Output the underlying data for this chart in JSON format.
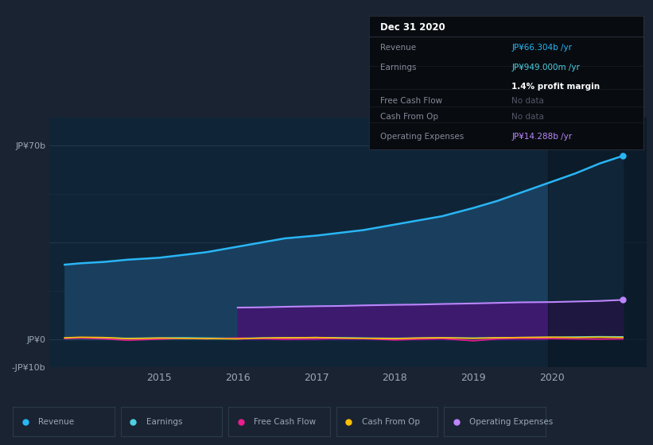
{
  "bg_color": "#1a2332",
  "plot_bg_color": "#0f2537",
  "grid_color": "#263d52",
  "text_color": "#9ba8b5",
  "years": [
    2013.8,
    2014.0,
    2014.3,
    2014.6,
    2015.0,
    2015.3,
    2015.6,
    2016.0,
    2016.3,
    2016.6,
    2017.0,
    2017.3,
    2017.6,
    2018.0,
    2018.3,
    2018.6,
    2019.0,
    2019.3,
    2019.6,
    2020.0,
    2020.3,
    2020.6,
    2020.9
  ],
  "revenue": [
    27.0,
    27.5,
    28.0,
    28.8,
    29.5,
    30.5,
    31.5,
    33.5,
    35.0,
    36.5,
    37.5,
    38.5,
    39.5,
    41.5,
    43.0,
    44.5,
    47.5,
    50.0,
    53.0,
    57.0,
    60.0,
    63.5,
    66.3
  ],
  "earnings": [
    0.5,
    0.6,
    0.55,
    0.4,
    0.5,
    0.6,
    0.5,
    0.4,
    0.5,
    0.6,
    0.7,
    0.6,
    0.5,
    0.4,
    0.5,
    0.6,
    0.5,
    0.6,
    0.7,
    0.8,
    0.9,
    1.0,
    0.949
  ],
  "free_cash_flow": [
    0.3,
    0.5,
    0.2,
    -0.3,
    0.1,
    0.4,
    0.2,
    0.5,
    0.3,
    0.1,
    0.2,
    0.4,
    0.3,
    -0.2,
    0.1,
    0.3,
    -0.5,
    0.2,
    0.4,
    0.3,
    0.2,
    0.1,
    0.2
  ],
  "cash_from_op": [
    0.6,
    0.8,
    0.7,
    0.3,
    0.5,
    0.4,
    0.3,
    0.2,
    0.5,
    0.6,
    0.7,
    0.5,
    0.4,
    0.3,
    0.5,
    0.6,
    0.4,
    0.6,
    0.7,
    0.8,
    0.7,
    0.8,
    0.7
  ],
  "op_expenses_years": [
    2016.0,
    2016.3,
    2016.6,
    2017.0,
    2017.3,
    2017.6,
    2018.0,
    2018.3,
    2018.6,
    2019.0,
    2019.3,
    2019.6,
    2020.0,
    2020.3,
    2020.6,
    2020.9
  ],
  "op_expenses": [
    11.5,
    11.6,
    11.8,
    12.0,
    12.1,
    12.3,
    12.5,
    12.6,
    12.8,
    13.0,
    13.2,
    13.4,
    13.5,
    13.7,
    13.9,
    14.288
  ],
  "revenue_color": "#29b6f6",
  "revenue_fill": "#1a3f5e",
  "earnings_color": "#4dd0e1",
  "free_cash_flow_color": "#e91e8c",
  "cash_from_op_color": "#ffc107",
  "op_expenses_color": "#bb86fc",
  "op_expenses_fill": "#3d1a6e",
  "highlight_color": "#0a1520",
  "ylim_min": -10,
  "ylim_max": 80,
  "xlim_min": 2013.6,
  "xlim_max": 2021.2,
  "yticks": [
    70,
    0,
    -10
  ],
  "xticks": [
    2015,
    2016,
    2017,
    2018,
    2019,
    2020
  ],
  "legend_items": [
    "Revenue",
    "Earnings",
    "Free Cash Flow",
    "Cash From Op",
    "Operating Expenses"
  ],
  "legend_colors": [
    "#29b6f6",
    "#4dd0e1",
    "#e91e8c",
    "#ffc107",
    "#bb86fc"
  ],
  "tooltip": {
    "title": "Dec 31 2020",
    "rows": [
      {
        "label": "Revenue",
        "value": "JP¥66.304b /yr",
        "value_color": "#29b6f6",
        "sub": null
      },
      {
        "label": "Earnings",
        "value": "JP¥949.000m /yr",
        "value_color": "#4dd0e1",
        "sub": "1.4% profit margin"
      },
      {
        "label": "Free Cash Flow",
        "value": "No data",
        "value_color": "#666666",
        "sub": null
      },
      {
        "label": "Cash From Op",
        "value": "No data",
        "value_color": "#666666",
        "sub": null
      },
      {
        "label": "Operating Expenses",
        "value": "JP¥14.288b /yr",
        "value_color": "#bb86fc",
        "sub": null
      }
    ]
  }
}
